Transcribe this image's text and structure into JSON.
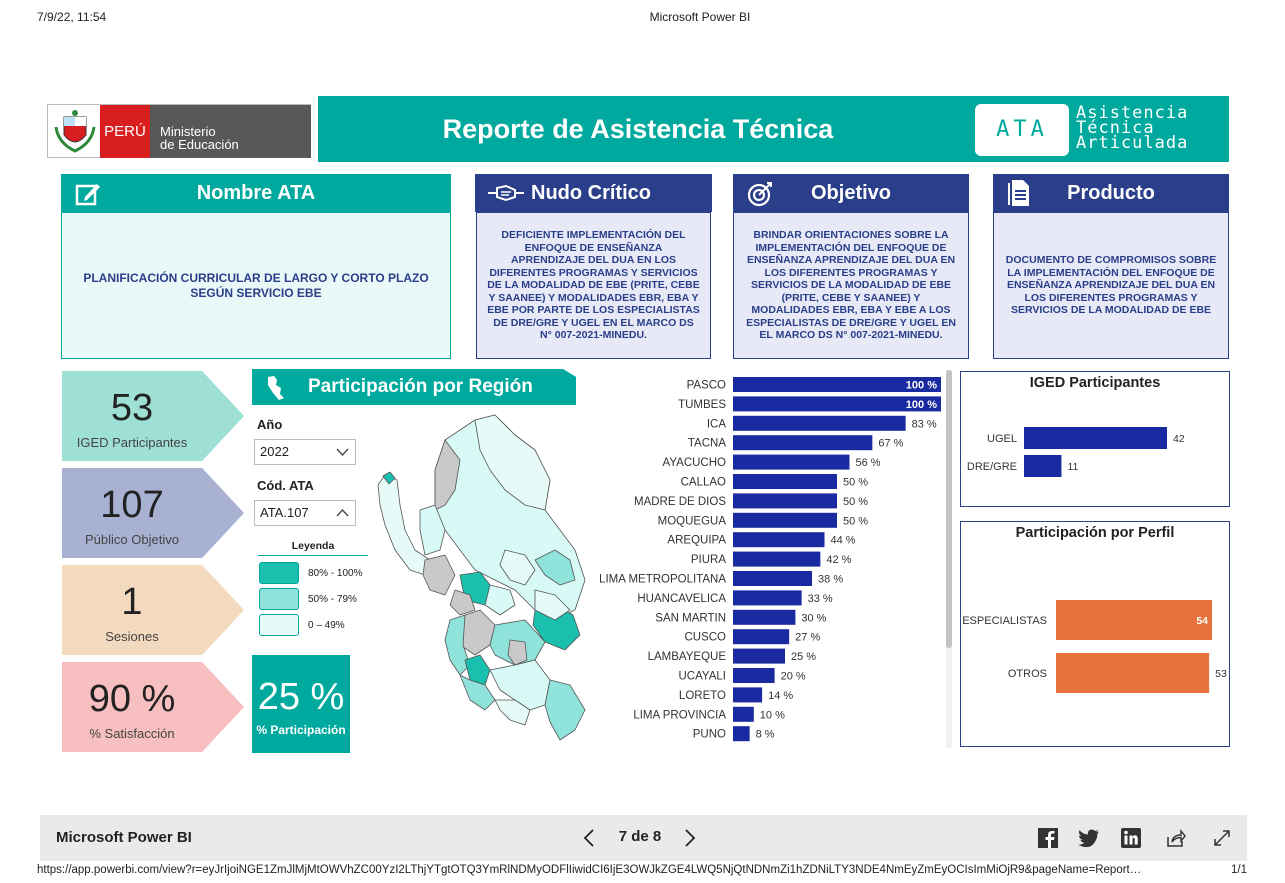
{
  "print_header": {
    "datetime": "7/9/22, 11:54",
    "page_title": "Microsoft Power BI"
  },
  "logo": {
    "country": "PERÚ",
    "ministry_line1": "Ministerio",
    "ministry_line2": "de Educación"
  },
  "banner": {
    "title": "Reporte de Asistencia Técnica",
    "ata_badge": "ATA",
    "ata_line1": "Asistencia",
    "ata_line2": "Técnica",
    "ata_line3": "Articulada"
  },
  "cards": {
    "nombre": {
      "title": "Nombre ATA",
      "icon": "edit-icon",
      "text": "PLANIFICACIÓN CURRICULAR DE LARGO Y CORTO PLAZO SEGÚN SERVICIO EBE"
    },
    "nudo": {
      "title": "Nudo Crítico",
      "icon": "handshake-icon",
      "text": "DEFICIENTE IMPLEMENTACIÓN DEL ENFOQUE DE ENSEÑANZA APRENDIZAJE DEL DUA EN LOS DIFERENTES PROGRAMAS Y SERVICIOS DE LA MODALIDAD DE EBE (PRITE, CEBE Y SAANEE) Y MODALIDADES EBR, EBA Y EBE POR PARTE DE LOS ESPECIALISTAS DE DRE/GRE Y UGEL EN EL MARCO DS N° 007-2021-MINEDU."
    },
    "objetivo": {
      "title": "Objetivo",
      "icon": "target-icon",
      "text": "BRINDAR ORIENTACIONES SOBRE LA IMPLEMENTACIÓN DEL ENFOQUE DE ENSEÑANZA APRENDIZAJE DEL DUA EN LOS DIFERENTES PROGRAMAS Y SERVICIOS DE LA MODALIDAD DE EBE (PRITE, CEBE Y SAANEE) Y MODALIDADES EBR, EBA Y EBE A LOS ESPECIALISTAS DE DRE/GRE Y UGEL EN EL MARCO DS N° 007-2021-MINEDU."
    },
    "producto": {
      "title": "Producto",
      "icon": "document-icon",
      "text": "DOCUMENTO DE COMPROMISOS SOBRE LA IMPLEMENTACIÓN DEL ENFOQUE DE ENSEÑANZA APRENDIZAJE DEL DUA EN LOS DIFERENTES PROGRAMAS Y SERVICIOS DE LA MODALIDAD DE EBE"
    }
  },
  "kpis": [
    {
      "value": "53",
      "label": "IGED Participantes",
      "color": "#9ee0d6"
    },
    {
      "value": "107",
      "label": "Público Objetivo",
      "color": "#a9b1d3"
    },
    {
      "value": "1",
      "label": "Sesiones",
      "color": "#f3d9bd"
    },
    {
      "value": "90 %",
      "label": "% Satisfacción",
      "color": "#f7bfbf"
    }
  ],
  "region": {
    "title": "Participación por Región",
    "year_label": "Año",
    "year_value": "2022",
    "code_label": "Cód. ATA",
    "code_value": "ATA.107",
    "legend_title": "Leyenda",
    "legend": [
      {
        "label": "80% - 100%",
        "color": "#1bbfae"
      },
      {
        "label": "50% - 79%",
        "color": "#8fe3da"
      },
      {
        "label": "0 – 49%",
        "color": "#e6fbf8"
      }
    ],
    "participation_value": "25 %",
    "participation_label": "% Participación"
  },
  "colors": {
    "teal": "#00a99d",
    "navy": "#2a3e8a",
    "bar": "#1a2aa0",
    "orange": "#e8703a"
  },
  "chart_data": [
    {
      "type": "bar",
      "title": "",
      "orientation": "horizontal",
      "categories": [
        "PASCO",
        "TUMBES",
        "ICA",
        "TACNA",
        "AYACUCHO",
        "CALLAO",
        "MADRE DE DIOS",
        "MOQUEGUA",
        "AREQUIPA",
        "PIURA",
        "LIMA METROPOLITANA",
        "HUANCAVELICA",
        "SAN MARTIN",
        "CUSCO",
        "LAMBAYEQUE",
        "UCAYALI",
        "LORETO",
        "LIMA PROVINCIA",
        "PUNO"
      ],
      "values": [
        100,
        100,
        83,
        67,
        56,
        50,
        50,
        50,
        44,
        42,
        38,
        33,
        30,
        27,
        25,
        20,
        14,
        10,
        8
      ],
      "value_labels": [
        "100 %",
        "100 %",
        "83 %",
        "67 %",
        "56 %",
        "50 %",
        "50 %",
        "50 %",
        "44 %",
        "42 %",
        "38 %",
        "33 %",
        "30 %",
        "27 %",
        "25 %",
        "20 %",
        "14 %",
        "10 %",
        "8 %"
      ],
      "xlim": [
        0,
        100
      ]
    },
    {
      "type": "bar",
      "title": "IGED Participantes",
      "orientation": "horizontal",
      "categories": [
        "UGEL",
        "DRE/GRE"
      ],
      "values": [
        42,
        11
      ],
      "value_labels": [
        "42",
        "11"
      ],
      "xlim": [
        0,
        42
      ]
    },
    {
      "type": "bar",
      "title": "Participación por Perfil",
      "orientation": "horizontal",
      "categories": [
        "ESPECIALISTAS",
        "OTROS"
      ],
      "values": [
        54,
        53
      ],
      "value_labels": [
        "54",
        "53"
      ],
      "xlim": [
        0,
        54
      ]
    }
  ],
  "footer": {
    "brand": "Microsoft Power BI",
    "page_indicator": "7 de 8"
  },
  "url_bar": {
    "url": "https://app.powerbi.com/view?r=eyJrIjoiNGE1ZmJlMjMtOWVhZC00YzI2LThjYTgtOTQ3YmRlNDMyODFlIiwidCI6IjE3OWJkZGE4LWQ5NjQtNDNmZi1hZDNiLTY3NDE4NmEyZmEyOCIsImMiOjR9&pageName=Report…",
    "page_count": "1/1"
  }
}
